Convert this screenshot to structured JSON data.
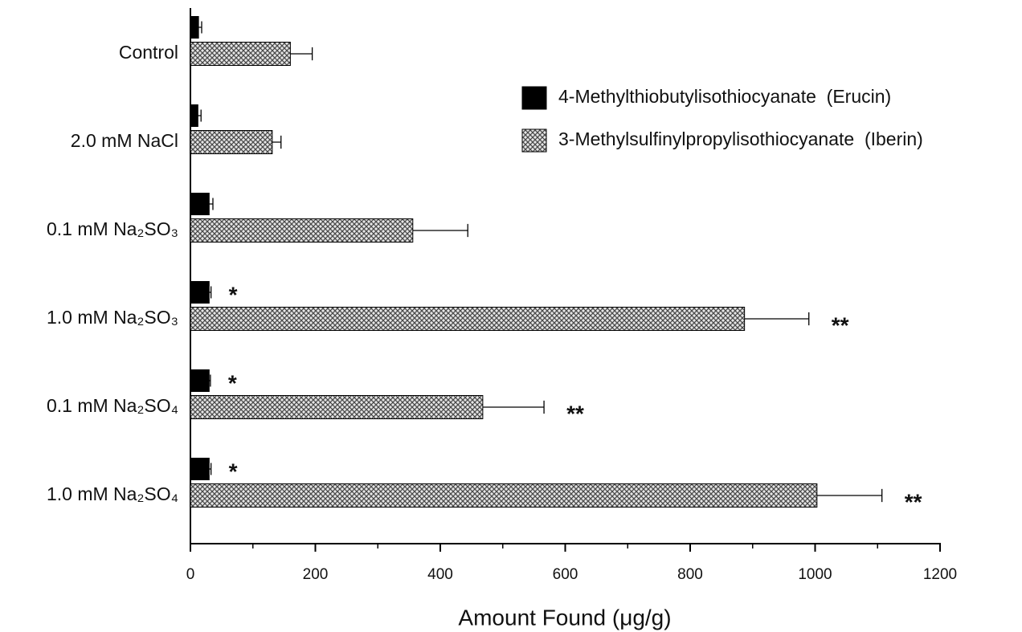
{
  "chart_data": {
    "type": "bar",
    "orientation": "horizontal",
    "xlabel": "Amount Found (μg/g)",
    "categories": [
      "Control",
      "2.0 mM NaCl",
      "0.1 mM Na₂SO₃",
      "1.0 mM Na₂SO₃",
      "0.1 mM Na₂SO₄",
      "1.0 mM Na₂SO₄"
    ],
    "series": [
      {
        "name": "4-Methylthiobutylisothiocyanate  (Erucin)",
        "color": "#000000",
        "hatch": false,
        "values": [
          13,
          12,
          30,
          30,
          30,
          30
        ],
        "errors": [
          5,
          5,
          6,
          3,
          2,
          3
        ],
        "significance": [
          null,
          null,
          null,
          "*",
          "*",
          "*"
        ]
      },
      {
        "name": "3-Methylsulfinylpropylisothiocyanate  (Iberin)",
        "color": "#8a8a8a",
        "hatch": true,
        "values": [
          160,
          131,
          356,
          887,
          468,
          1003
        ],
        "errors": [
          35,
          14,
          88,
          103,
          98,
          104
        ],
        "significance": [
          null,
          null,
          null,
          "**",
          "**",
          "**"
        ]
      }
    ],
    "xlim": [
      0,
      1200
    ],
    "xticks": [
      0,
      200,
      400,
      600,
      800,
      1000,
      1200
    ],
    "xminorticks": [
      100,
      300,
      500,
      700,
      900,
      1100
    ],
    "legend": "upper right"
  }
}
